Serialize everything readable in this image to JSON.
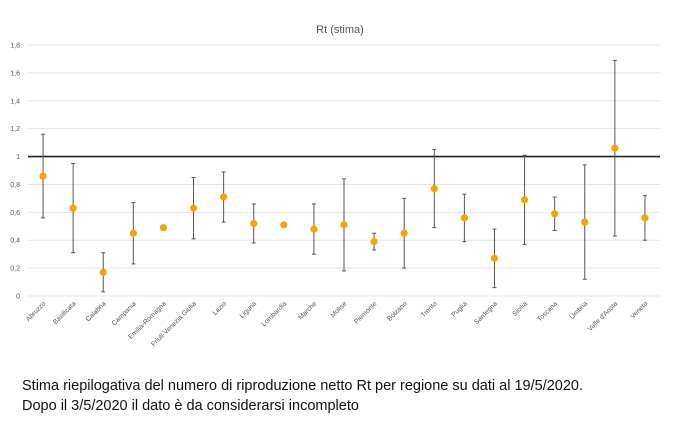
{
  "chart_data": {
    "type": "scatter",
    "title": "Rt (stima)",
    "xlabel": "",
    "ylabel": "",
    "ylim": [
      0,
      1.8
    ],
    "yticks": [
      "0",
      "0,2",
      "0,4",
      "0,6",
      "0,8",
      "1",
      "1,2",
      "1,4",
      "1,6",
      "1,8"
    ],
    "grid": true,
    "reference_line": 1,
    "colors": {
      "point": "#f5a400",
      "error_bar": "#555555",
      "grid": "#e4e4e4",
      "reference": "#222222"
    },
    "categories": [
      "Abruzzo",
      "Basilicata",
      "Calabria",
      "Campania",
      "Emilia-Romagna",
      "Friuli-Venezia Giulia",
      "Lazio",
      "Liguria",
      "Lombardia",
      "Marche",
      "Molise",
      "Piemonte",
      "Bolzano",
      "Trento",
      "Puglia",
      "Sardegna",
      "Sicilia",
      "Toscana",
      "Umbria",
      "Valle d'Aosta",
      "Veneto"
    ],
    "values": [
      0.86,
      0.63,
      0.17,
      0.45,
      0.49,
      0.63,
      0.71,
      0.52,
      0.51,
      0.48,
      0.51,
      0.39,
      0.45,
      0.77,
      0.56,
      0.27,
      0.69,
      0.59,
      0.53,
      1.06,
      0.56
    ],
    "lower": [
      0.56,
      0.31,
      0.03,
      0.23,
      null,
      0.41,
      0.53,
      0.38,
      null,
      0.3,
      0.18,
      0.33,
      0.2,
      0.49,
      0.39,
      0.06,
      0.37,
      0.47,
      0.12,
      0.43,
      0.4
    ],
    "upper": [
      1.16,
      0.95,
      0.31,
      0.67,
      null,
      0.85,
      0.89,
      0.66,
      null,
      0.66,
      0.84,
      0.45,
      0.7,
      1.05,
      0.73,
      0.48,
      1.01,
      0.71,
      0.94,
      1.69,
      0.72
    ]
  },
  "caption": {
    "line1": "Stima riepilogativa del numero di riproduzione netto Rt per regione su dati al 19/5/2020.",
    "line2": "Dopo il 3/5/2020 il dato è da considerarsi incompleto"
  }
}
